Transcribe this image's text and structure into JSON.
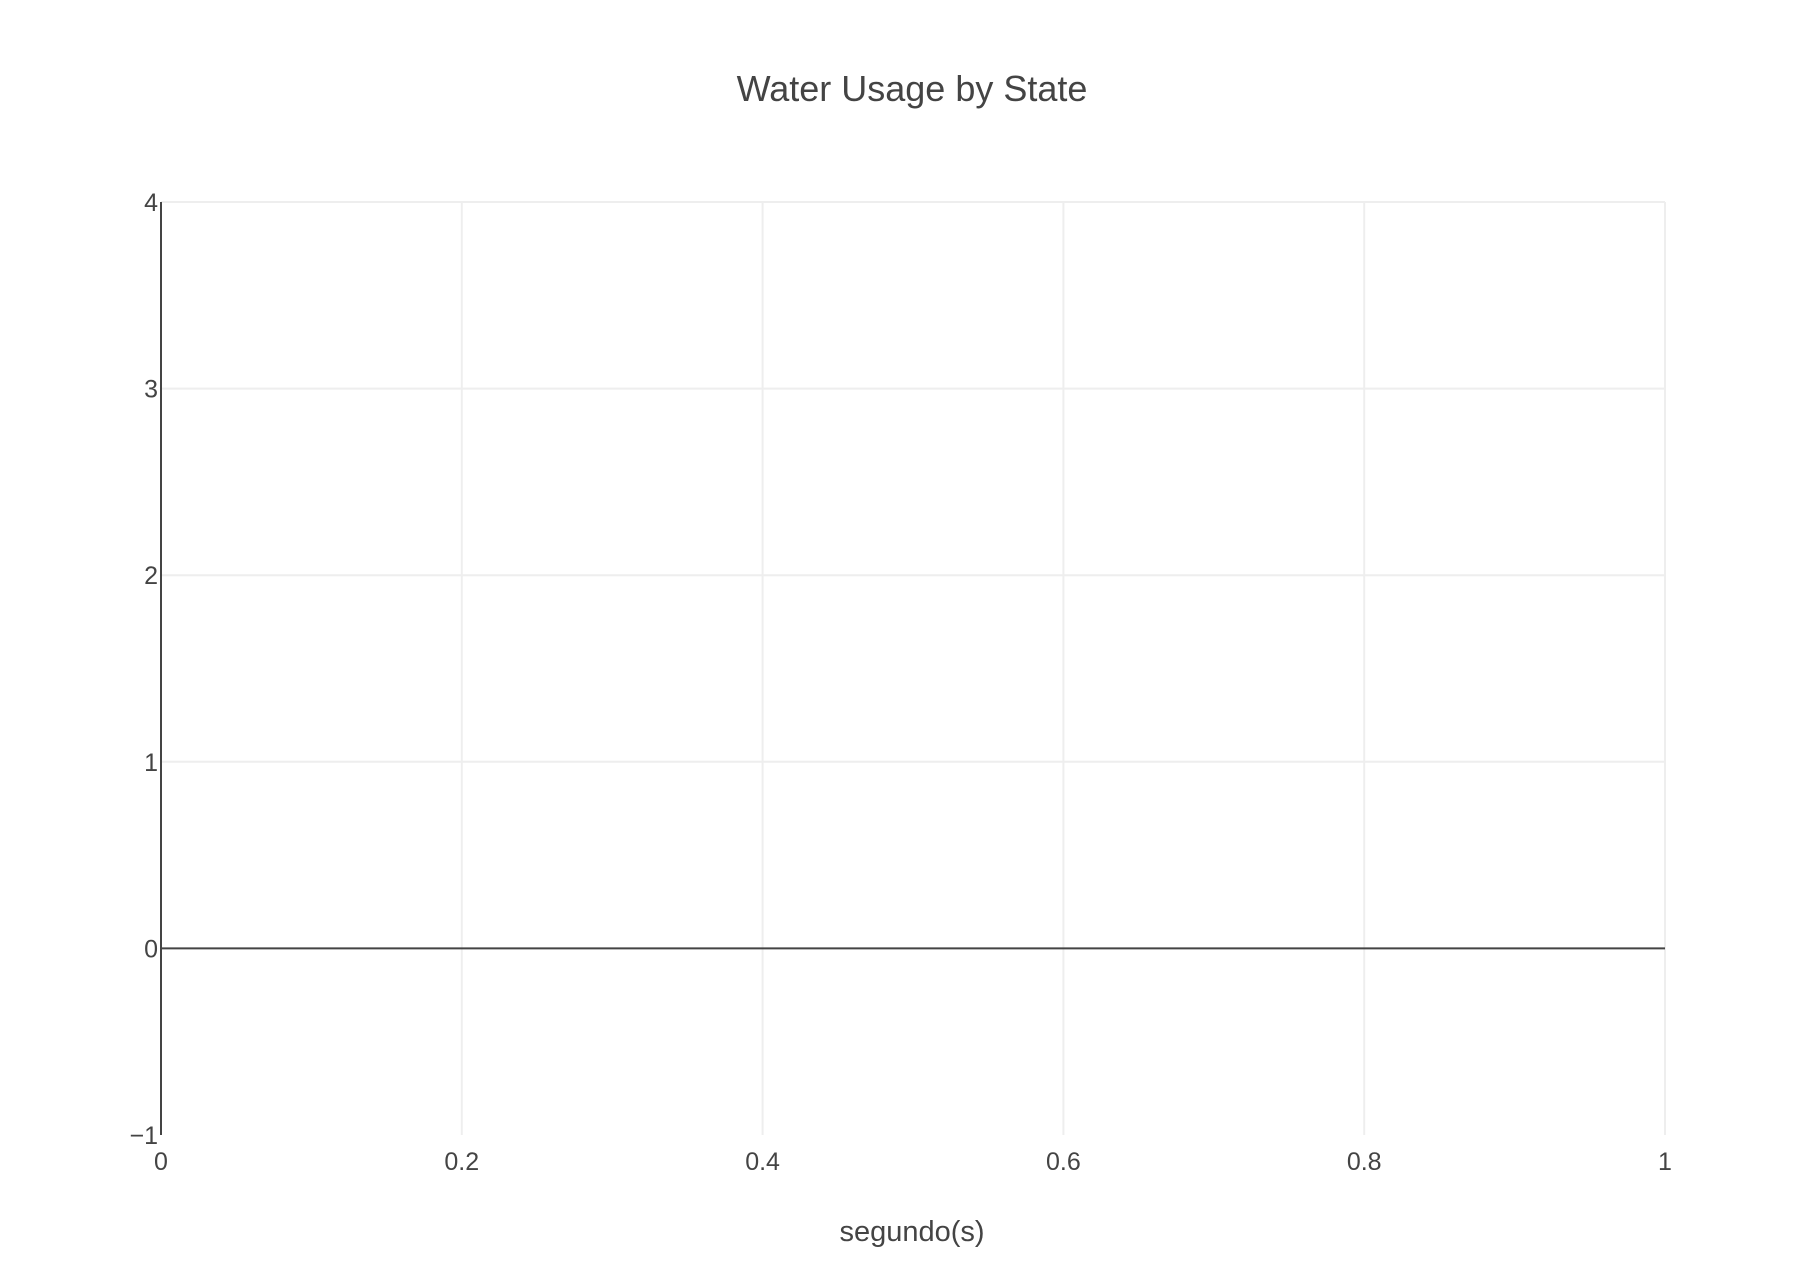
{
  "chart_data": {
    "type": "line",
    "title": "Water Usage by State",
    "xlabel": "segundo(s)",
    "ylabel": "",
    "xlim": [
      0,
      1
    ],
    "ylim": [
      -1,
      4
    ],
    "x_ticks": [
      0,
      0.2,
      0.4,
      0.6,
      0.8,
      1
    ],
    "x_tick_labels": [
      "0",
      "0.2",
      "0.4",
      "0.6",
      "0.8",
      "1"
    ],
    "y_ticks": [
      -1,
      0,
      1,
      2,
      3,
      4
    ],
    "y_tick_labels": [
      "−1",
      "0",
      "1",
      "2",
      "3",
      "4"
    ],
    "grid": true,
    "series": []
  }
}
